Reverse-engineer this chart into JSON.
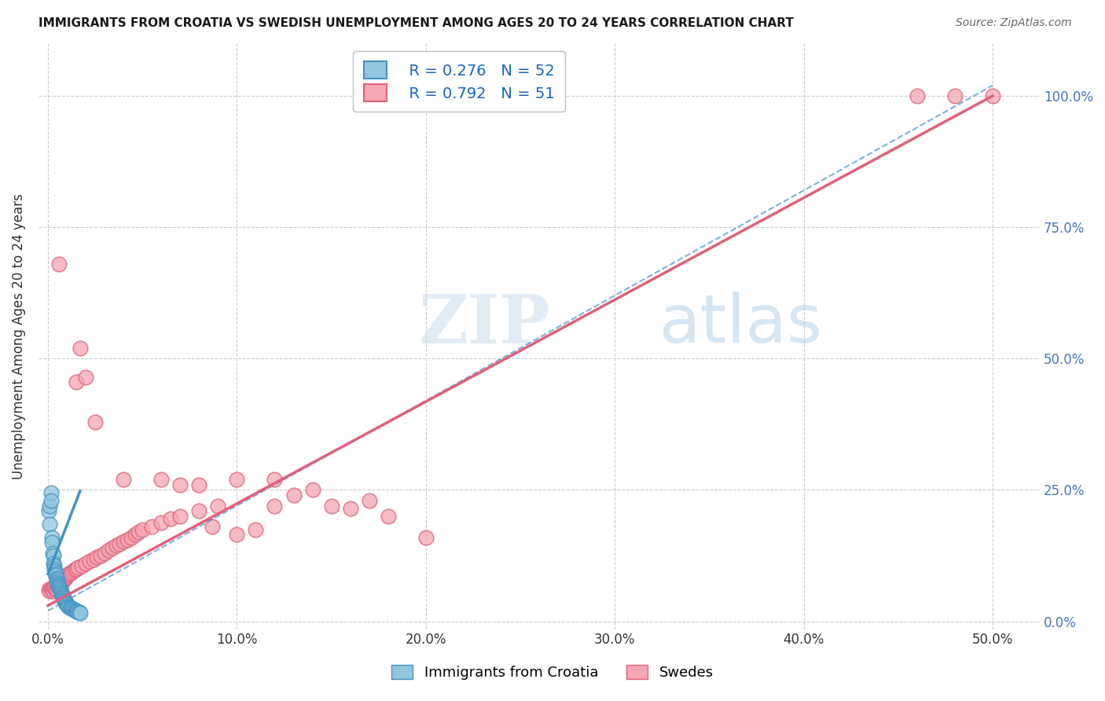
{
  "title": "IMMIGRANTS FROM CROATIA VS SWEDISH UNEMPLOYMENT AMONG AGES 20 TO 24 YEARS CORRELATION CHART",
  "source": "Source: ZipAtlas.com",
  "xlabel_ticks": [
    "0.0%",
    "10.0%",
    "20.0%",
    "30.0%",
    "40.0%",
    "50.0%"
  ],
  "xlabel_vals": [
    0,
    0.1,
    0.2,
    0.3,
    0.4,
    0.5
  ],
  "ylabel_ticks": [
    "0.0%",
    "25.0%",
    "50.0%",
    "75.0%",
    "100.0%"
  ],
  "ylabel_vals": [
    0,
    0.25,
    0.5,
    0.75,
    1.0
  ],
  "xlim": [
    -0.005,
    0.525
  ],
  "ylim": [
    -0.015,
    1.1
  ],
  "legend1_label": "Immigrants from Croatia",
  "legend2_label": "Swedes",
  "R1": "0.276",
  "N1": "52",
  "R2": "0.792",
  "N2": "51",
  "color_blue": "#92C5DE",
  "color_pink": "#F4A6B2",
  "color_blue_line": "#4393C3",
  "color_pink_line": "#E0607A",
  "watermark_zip": "ZIP",
  "watermark_atlas": "atlas",
  "background_color": "#FFFFFF",
  "grid_color": "#CCCCCC",
  "scatter_blue": [
    [
      0.0005,
      0.21
    ],
    [
      0.0008,
      0.22
    ],
    [
      0.001,
      0.185
    ],
    [
      0.0015,
      0.245
    ],
    [
      0.0018,
      0.23
    ],
    [
      0.002,
      0.16
    ],
    [
      0.0022,
      0.15
    ],
    [
      0.0025,
      0.13
    ],
    [
      0.0028,
      0.125
    ],
    [
      0.003,
      0.11
    ],
    [
      0.0032,
      0.105
    ],
    [
      0.0035,
      0.1
    ],
    [
      0.0038,
      0.095
    ],
    [
      0.004,
      0.09
    ],
    [
      0.0042,
      0.088
    ],
    [
      0.0045,
      0.082
    ],
    [
      0.0048,
      0.08
    ],
    [
      0.005,
      0.075
    ],
    [
      0.0052,
      0.073
    ],
    [
      0.0055,
      0.07
    ],
    [
      0.0058,
      0.068
    ],
    [
      0.006,
      0.065
    ],
    [
      0.0062,
      0.063
    ],
    [
      0.0065,
      0.06
    ],
    [
      0.0068,
      0.058
    ],
    [
      0.007,
      0.055
    ],
    [
      0.0072,
      0.053
    ],
    [
      0.0075,
      0.05
    ],
    [
      0.0078,
      0.048
    ],
    [
      0.008,
      0.046
    ],
    [
      0.0082,
      0.044
    ],
    [
      0.0085,
      0.042
    ],
    [
      0.0088,
      0.04
    ],
    [
      0.009,
      0.038
    ],
    [
      0.0092,
      0.036
    ],
    [
      0.0095,
      0.035
    ],
    [
      0.0098,
      0.033
    ],
    [
      0.01,
      0.032
    ],
    [
      0.0105,
      0.03
    ],
    [
      0.011,
      0.028
    ],
    [
      0.0115,
      0.027
    ],
    [
      0.012,
      0.026
    ],
    [
      0.0125,
      0.025
    ],
    [
      0.013,
      0.024
    ],
    [
      0.0135,
      0.023
    ],
    [
      0.014,
      0.022
    ],
    [
      0.0145,
      0.021
    ],
    [
      0.015,
      0.02
    ],
    [
      0.0155,
      0.019
    ],
    [
      0.016,
      0.018
    ],
    [
      0.0165,
      0.017
    ],
    [
      0.017,
      0.016
    ]
  ],
  "scatter_pink": [
    [
      0.0005,
      0.06
    ],
    [
      0.001,
      0.058
    ],
    [
      0.0015,
      0.062
    ],
    [
      0.002,
      0.06
    ],
    [
      0.0025,
      0.058
    ],
    [
      0.003,
      0.065
    ],
    [
      0.0035,
      0.063
    ],
    [
      0.004,
      0.062
    ],
    [
      0.0045,
      0.06
    ],
    [
      0.005,
      0.068
    ],
    [
      0.0055,
      0.066
    ],
    [
      0.006,
      0.07
    ],
    [
      0.0065,
      0.072
    ],
    [
      0.007,
      0.075
    ],
    [
      0.0075,
      0.074
    ],
    [
      0.008,
      0.078
    ],
    [
      0.0085,
      0.08
    ],
    [
      0.009,
      0.082
    ],
    [
      0.0095,
      0.085
    ],
    [
      0.01,
      0.088
    ],
    [
      0.011,
      0.09
    ],
    [
      0.012,
      0.092
    ],
    [
      0.013,
      0.095
    ],
    [
      0.014,
      0.098
    ],
    [
      0.015,
      0.1
    ],
    [
      0.016,
      0.103
    ],
    [
      0.018,
      0.105
    ],
    [
      0.02,
      0.11
    ],
    [
      0.022,
      0.115
    ],
    [
      0.024,
      0.118
    ],
    [
      0.026,
      0.122
    ],
    [
      0.028,
      0.125
    ],
    [
      0.03,
      0.13
    ],
    [
      0.032,
      0.135
    ],
    [
      0.034,
      0.14
    ],
    [
      0.036,
      0.145
    ],
    [
      0.038,
      0.148
    ],
    [
      0.04,
      0.152
    ],
    [
      0.042,
      0.155
    ],
    [
      0.044,
      0.16
    ],
    [
      0.046,
      0.165
    ],
    [
      0.048,
      0.17
    ],
    [
      0.05,
      0.175
    ],
    [
      0.055,
      0.18
    ],
    [
      0.06,
      0.188
    ],
    [
      0.065,
      0.195
    ],
    [
      0.07,
      0.2
    ],
    [
      0.08,
      0.21
    ],
    [
      0.087,
      0.18
    ],
    [
      0.1,
      0.165
    ],
    [
      0.11,
      0.175
    ],
    [
      0.006,
      0.68
    ],
    [
      0.09,
      0.22
    ],
    [
      0.12,
      0.22
    ],
    [
      0.13,
      0.24
    ],
    [
      0.14,
      0.25
    ],
    [
      0.15,
      0.22
    ],
    [
      0.16,
      0.215
    ],
    [
      0.17,
      0.23
    ],
    [
      0.18,
      0.2
    ],
    [
      0.2,
      0.16
    ],
    [
      0.015,
      0.455
    ],
    [
      0.017,
      0.52
    ],
    [
      0.02,
      0.465
    ],
    [
      0.025,
      0.38
    ],
    [
      0.04,
      0.27
    ],
    [
      0.06,
      0.27
    ],
    [
      0.07,
      0.26
    ],
    [
      0.08,
      0.26
    ],
    [
      0.1,
      0.27
    ],
    [
      0.12,
      0.27
    ],
    [
      0.46,
      1.0
    ],
    [
      0.48,
      1.0
    ],
    [
      0.5,
      1.0
    ]
  ],
  "trendline_blue_solid": [
    [
      0.0,
      0.09
    ],
    [
      0.017,
      0.248
    ]
  ],
  "trendline_blue_dashed": [
    [
      0.0,
      0.02
    ],
    [
      0.5,
      1.02
    ]
  ],
  "trendline_pink": [
    [
      0.0,
      0.03
    ],
    [
      0.5,
      1.0
    ]
  ]
}
